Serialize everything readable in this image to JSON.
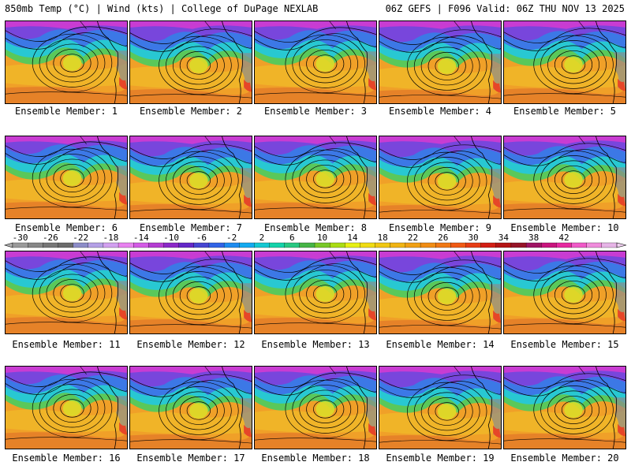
{
  "header": {
    "left_title": "850mb Temp (°C) | Wind (kts) | College of DuPage NEXLAB",
    "right_title": "06Z GEFS | F096 Valid: 06Z THU NOV 13 2025"
  },
  "panels": [
    {
      "label": "Ensemble Member: 1"
    },
    {
      "label": "Ensemble Member: 2"
    },
    {
      "label": "Ensemble Member: 3"
    },
    {
      "label": "Ensemble Member: 4"
    },
    {
      "label": "Ensemble Member: 5"
    },
    {
      "label": "Ensemble Member: 6"
    },
    {
      "label": "Ensemble Member: 7"
    },
    {
      "label": "Ensemble Member: 8"
    },
    {
      "label": "Ensemble Member: 9"
    },
    {
      "label": "Ensemble Member: 10"
    },
    {
      "label": "Ensemble Member: 11"
    },
    {
      "label": "Ensemble Member: 12"
    },
    {
      "label": "Ensemble Member: 13"
    },
    {
      "label": "Ensemble Member: 14"
    },
    {
      "label": "Ensemble Member: 15"
    },
    {
      "label": "Ensemble Member: 16"
    },
    {
      "label": "Ensemble Member: 17"
    },
    {
      "label": "Ensemble Member: 18"
    },
    {
      "label": "Ensemble Member: 19"
    },
    {
      "label": "Ensemble Member: 20"
    }
  ],
  "colorbar": {
    "ticks": [
      "-30",
      "-26",
      "-22",
      "-18",
      "-14",
      "-10",
      "-6",
      "-2",
      "2",
      "6",
      "10",
      "14",
      "18",
      "22",
      "26",
      "30",
      "34",
      "38",
      "42"
    ],
    "colors": [
      "#9a9a9a",
      "#878787",
      "#777777",
      "#6b6b6b",
      "#8c8cc8",
      "#b4a0e6",
      "#d2a0f0",
      "#e882f0",
      "#d45ae6",
      "#b43cd2",
      "#8c28c8",
      "#6428c8",
      "#4646d2",
      "#3264e6",
      "#1e8cf0",
      "#14aaf0",
      "#14c8d2",
      "#14d2aa",
      "#28c882",
      "#46b446",
      "#78c828",
      "#aadc14",
      "#e6f014",
      "#f0dc14",
      "#f0c814",
      "#f0b414",
      "#f0a014",
      "#f08c14",
      "#f07814",
      "#f05a14",
      "#e63c14",
      "#d21e14",
      "#b41414",
      "#961428",
      "#a01464",
      "#c8147d",
      "#e628a0",
      "#f05ac8",
      "#f08cdc",
      "#e6b4e6"
    ]
  },
  "map_colors": {
    "arctic_magenta": "#c83cd2",
    "cold_purple": "#7846dc",
    "blue": "#3c78e6",
    "cyan": "#28c8d2",
    "green": "#5ac85a",
    "yellow": "#dcdc28",
    "light_orange": "#f0b428",
    "orange": "#f0a028",
    "dark_orange": "#e68228",
    "red": "#e64628",
    "gray": "#8c8c8c"
  }
}
